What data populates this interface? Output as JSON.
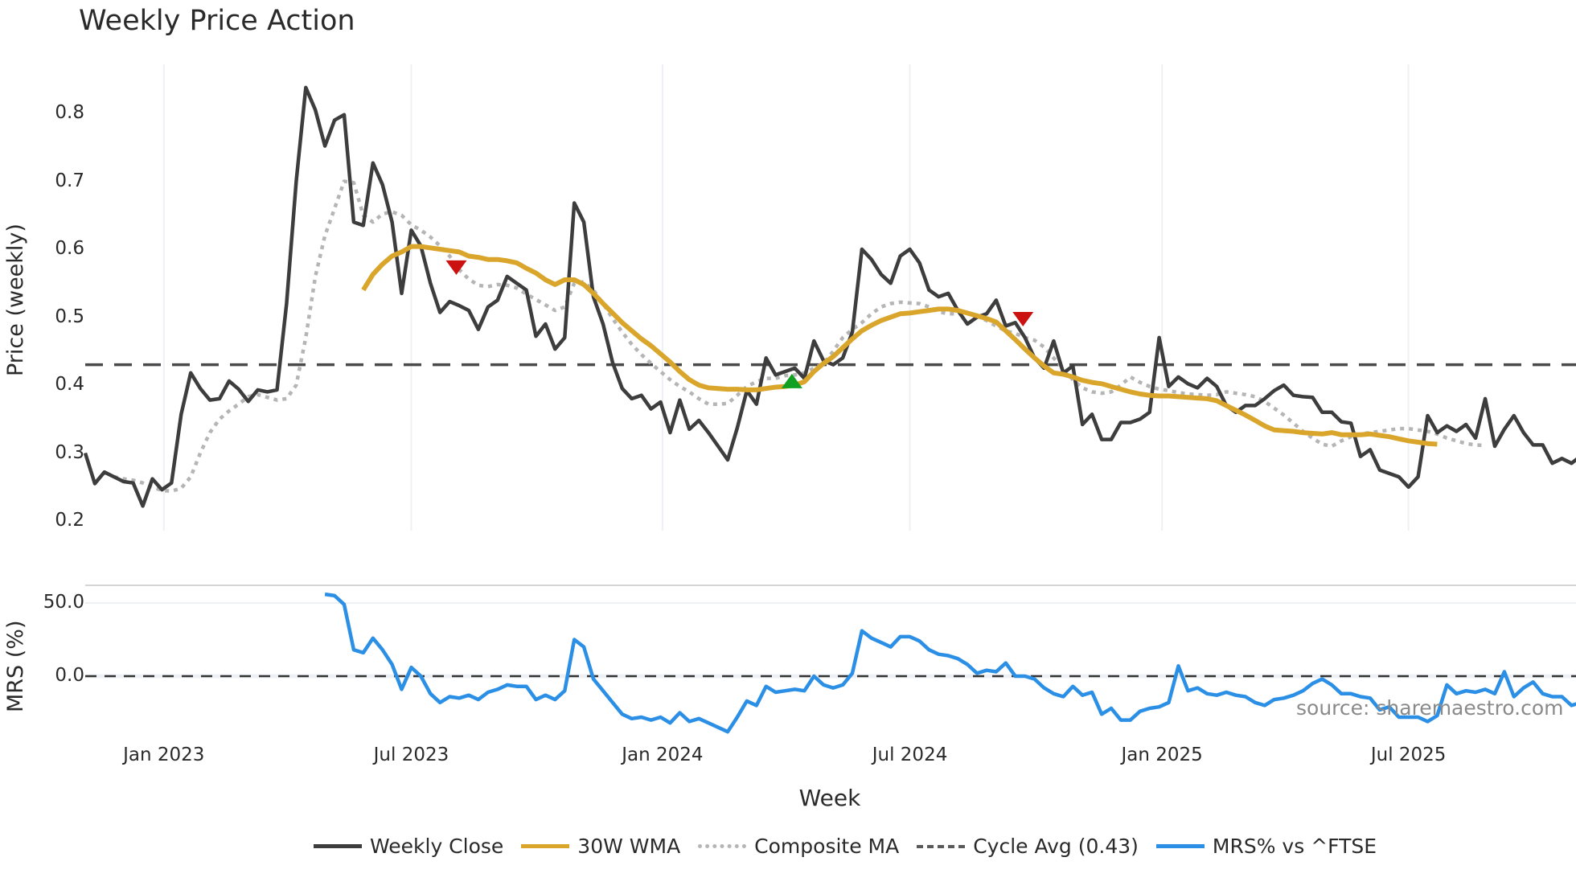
{
  "title": "Weekly Price Action",
  "source_label": "source: sharemaestro.com",
  "colors": {
    "weekly_close": "#3d3d3d",
    "wma": "#d9a62b",
    "composite": "#b5b5b5",
    "cycle_avg": "#4a4a4a",
    "mrs": "#2b8fe6",
    "sell_marker": "#cc1111",
    "buy_marker": "#11a022",
    "grid": "#eceff3"
  },
  "chart_data": [
    {
      "type": "line",
      "title": "Weekly Price Action",
      "xlabel": "Week",
      "ylabel": "Price (weekly)",
      "ylim": [
        0.19,
        0.87
      ],
      "yticks": [
        0.2,
        0.3,
        0.4,
        0.5,
        0.6,
        0.7,
        0.8
      ],
      "ytick_labels": [
        "0.2",
        "0.3",
        "0.4",
        "0.5",
        "0.6",
        "0.7",
        "0.8"
      ],
      "xtick_labels": [
        "Jan 2023",
        "Jul 2023",
        "Jan 2024",
        "Jul 2024",
        "Jan 2025",
        "Jul 2025"
      ],
      "xtick_week_index": [
        8.2,
        34,
        60.2,
        86,
        112.3,
        138
      ],
      "x_start": "Nov 2022",
      "x_end": "Nov 2025",
      "grid": true,
      "legend_position": "bottom",
      "series": [
        {
          "name": "Weekly Close",
          "values": [
            0.3,
            0.255,
            0.272,
            0.265,
            0.258,
            0.256,
            0.222,
            0.262,
            0.246,
            0.256,
            0.357,
            0.418,
            0.395,
            0.378,
            0.38,
            0.406,
            0.394,
            0.376,
            0.393,
            0.39,
            0.393,
            0.52,
            0.7,
            0.838,
            0.805,
            0.752,
            0.79,
            0.798,
            0.64,
            0.635,
            0.727,
            0.695,
            0.64,
            0.535,
            0.628,
            0.605,
            0.55,
            0.507,
            0.523,
            0.517,
            0.51,
            0.482,
            0.515,
            0.525,
            0.56,
            0.55,
            0.54,
            0.472,
            0.49,
            0.453,
            0.47,
            0.668,
            0.64,
            0.53,
            0.49,
            0.433,
            0.395,
            0.38,
            0.385,
            0.365,
            0.375,
            0.33,
            0.378,
            0.335,
            0.348,
            0.33,
            0.31,
            0.29,
            0.337,
            0.392,
            0.372,
            0.44,
            0.415,
            0.42,
            0.425,
            0.41,
            0.465,
            0.436,
            0.43,
            0.44,
            0.478,
            0.6,
            0.585,
            0.563,
            0.55,
            0.59,
            0.6,
            0.58,
            0.54,
            0.53,
            0.535,
            0.51,
            0.49,
            0.5,
            0.505,
            0.525,
            0.487,
            0.492,
            0.47,
            0.44,
            0.425,
            0.465,
            0.418,
            0.428,
            0.342,
            0.357,
            0.32,
            0.32,
            0.345,
            0.345,
            0.35,
            0.36,
            0.47,
            0.398,
            0.412,
            0.402,
            0.396,
            0.41,
            0.398,
            0.37,
            0.36,
            0.37,
            0.37,
            0.38,
            0.392,
            0.4,
            0.385,
            0.383,
            0.382,
            0.36,
            0.36,
            0.346,
            0.344,
            0.295,
            0.305,
            0.275,
            0.27,
            0.265,
            0.25,
            0.265,
            0.355,
            0.33,
            0.34,
            0.332,
            0.342,
            0.322,
            0.38,
            0.31,
            0.335,
            0.355,
            0.33,
            0.312,
            0.312,
            0.285,
            0.292,
            0.285,
            0.296,
            0.306
          ]
        },
        {
          "name": "30W WMA",
          "start_index": 29,
          "values": [
            0.54,
            0.563,
            0.578,
            0.59,
            0.596,
            0.604,
            0.604,
            0.602,
            0.6,
            0.598,
            0.596,
            0.59,
            0.588,
            0.585,
            0.585,
            0.583,
            0.58,
            0.572,
            0.565,
            0.555,
            0.548,
            0.555,
            0.555,
            0.548,
            0.535,
            0.52,
            0.506,
            0.492,
            0.48,
            0.468,
            0.458,
            0.446,
            0.434,
            0.42,
            0.408,
            0.4,
            0.396,
            0.395,
            0.394,
            0.394,
            0.393,
            0.393,
            0.395,
            0.397,
            0.398,
            0.4,
            0.405,
            0.42,
            0.432,
            0.442,
            0.455,
            0.468,
            0.48,
            0.488,
            0.495,
            0.5,
            0.505,
            0.506,
            0.508,
            0.51,
            0.512,
            0.512,
            0.51,
            0.506,
            0.502,
            0.498,
            0.493,
            0.48,
            0.467,
            0.453,
            0.44,
            0.428,
            0.418,
            0.416,
            0.412,
            0.407,
            0.404,
            0.402,
            0.398,
            0.394,
            0.39,
            0.387,
            0.385,
            0.384,
            0.384,
            0.383,
            0.382,
            0.381,
            0.38,
            0.377,
            0.37,
            0.363,
            0.356,
            0.348,
            0.34,
            0.334,
            0.333,
            0.332,
            0.33,
            0.329,
            0.328,
            0.33,
            0.327,
            0.327,
            0.327,
            0.328,
            0.326,
            0.324,
            0.321,
            0.318,
            0.316,
            0.314,
            0.313
          ]
        },
        {
          "name": "Composite MA",
          "start_index": 3,
          "values": [
            0.265,
            0.262,
            0.26,
            0.256,
            0.25,
            0.245,
            0.244,
            0.248,
            0.265,
            0.3,
            0.33,
            0.35,
            0.362,
            0.372,
            0.383,
            0.386,
            0.382,
            0.378,
            0.38,
            0.4,
            0.47,
            0.56,
            0.62,
            0.66,
            0.7,
            0.698,
            0.65,
            0.64,
            0.652,
            0.655,
            0.65,
            0.636,
            0.628,
            0.618,
            0.605,
            0.59,
            0.57,
            0.556,
            0.547,
            0.545,
            0.548,
            0.547,
            0.543,
            0.534,
            0.526,
            0.518,
            0.51,
            0.515,
            0.55,
            0.552,
            0.54,
            0.52,
            0.498,
            0.478,
            0.46,
            0.445,
            0.432,
            0.42,
            0.408,
            0.398,
            0.39,
            0.38,
            0.372,
            0.372,
            0.373,
            0.385,
            0.398,
            0.405,
            0.41,
            0.41,
            0.414,
            0.415,
            0.418,
            0.425,
            0.432,
            0.45,
            0.47,
            0.482,
            0.492,
            0.505,
            0.515,
            0.52,
            0.522,
            0.521,
            0.52,
            0.515,
            0.508,
            0.505,
            0.505,
            0.505,
            0.502,
            0.495,
            0.487,
            0.48,
            0.476,
            0.47,
            0.466,
            0.456,
            0.44,
            0.424,
            0.408,
            0.396,
            0.39,
            0.388,
            0.39,
            0.4,
            0.412,
            0.404,
            0.398,
            0.394,
            0.392,
            0.389,
            0.387,
            0.386,
            0.385,
            0.386,
            0.39,
            0.388,
            0.386,
            0.383,
            0.376,
            0.366,
            0.356,
            0.344,
            0.332,
            0.322,
            0.313,
            0.31,
            0.318,
            0.324,
            0.328,
            0.33,
            0.332,
            0.334,
            0.336,
            0.336,
            0.334,
            0.332,
            0.328,
            0.322,
            0.318,
            0.314,
            0.312,
            0.311
          ]
        },
        {
          "name": "Cycle Avg (0.43)",
          "constant": 0.43
        }
      ],
      "markers": [
        {
          "type": "sell",
          "shape": "triangle-down",
          "week_index": 38.7,
          "value": 0.573
        },
        {
          "type": "buy",
          "shape": "triangle-up",
          "week_index": 73.7,
          "value": 0.406
        },
        {
          "type": "sell",
          "shape": "triangle-down",
          "week_index": 97.8,
          "value": 0.497
        }
      ]
    },
    {
      "type": "line",
      "title": "",
      "xlabel": "Week",
      "ylabel": "MRS (%)",
      "ylim": [
        -45,
        60
      ],
      "yticks": [
        0,
        50
      ],
      "ytick_labels": [
        "0.0",
        "50.0"
      ],
      "zero_line": true,
      "series": [
        {
          "name": "MRS% vs ^FTSE",
          "start_index": 25,
          "values": [
            56,
            55,
            49,
            18,
            16,
            26,
            18,
            8,
            -9,
            6,
            0,
            -12,
            -18,
            -14,
            -15,
            -13,
            -16,
            -11,
            -9,
            -6,
            -7,
            -7,
            -16,
            -13,
            -16,
            -10,
            25,
            20,
            -2,
            -10,
            -18,
            -26,
            -29,
            -28,
            -30,
            -28,
            -32,
            -25,
            -31,
            -29,
            -32,
            -35,
            -38,
            -28,
            -17,
            -20,
            -7,
            -11,
            -10,
            -9,
            -10,
            0,
            -6,
            -8,
            -6,
            2,
            31,
            26,
            23,
            20,
            27,
            27,
            24,
            18,
            15,
            14,
            12,
            8,
            2,
            4,
            3,
            9,
            0,
            0,
            -2,
            -8,
            -12,
            -14,
            -7,
            -13,
            -11,
            -26,
            -22,
            -30,
            -30,
            -24,
            -22,
            -21,
            -18,
            7,
            -10,
            -8,
            -12,
            -13,
            -11,
            -13,
            -14,
            -18,
            -20,
            -16,
            -15,
            -13,
            -10,
            -5,
            -2,
            -6,
            -12,
            -12,
            -14,
            -15,
            -23,
            -21,
            -28,
            -28,
            -28,
            -31,
            -27,
            -6,
            -12,
            -10,
            -11,
            -9,
            -12,
            3,
            -14,
            -8,
            -4,
            -12,
            -14,
            -14,
            -20,
            -18,
            -17,
            -15
          ]
        }
      ]
    }
  ],
  "axes": {
    "price_ylabel": "Price (weekly)",
    "mrs_ylabel": "MRS (%)",
    "xlabel": "Week"
  },
  "legend": [
    {
      "label": "Weekly Close",
      "style": "solid",
      "color": "#3d3d3d"
    },
    {
      "label": "30W WMA",
      "style": "solid",
      "color": "#d9a62b"
    },
    {
      "label": "Composite MA",
      "style": "dotted",
      "color": "#b5b5b5"
    },
    {
      "label": "Cycle Avg (0.43)",
      "style": "dashed",
      "color": "#4a4a4a"
    },
    {
      "label": "MRS% vs ^FTSE",
      "style": "solid",
      "color": "#2b8fe6"
    }
  ]
}
